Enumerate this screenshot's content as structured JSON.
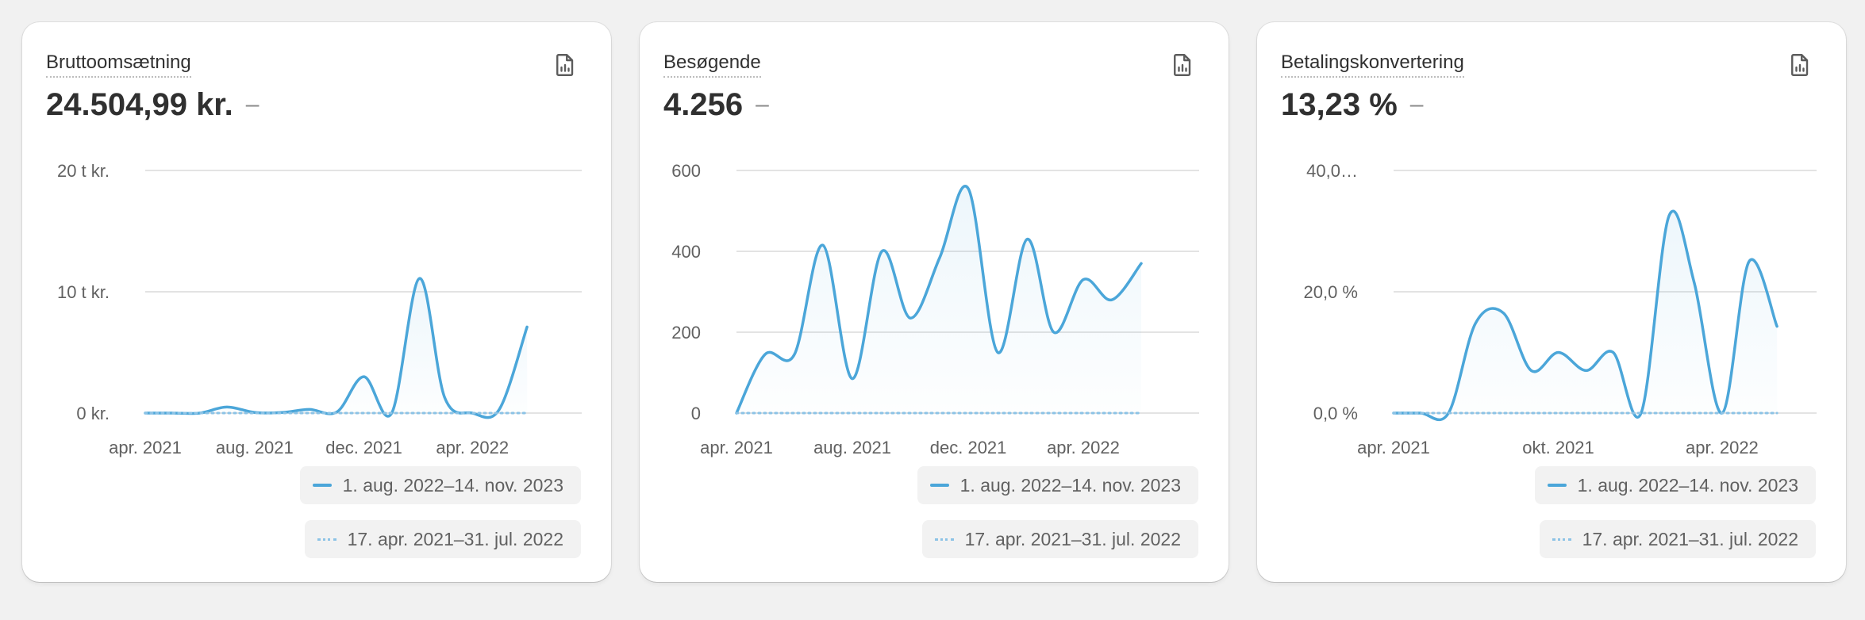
{
  "cards": [
    {
      "title": "Bruttoomsætning",
      "value": "24.504,99 kr.",
      "comparison": "–",
      "icon": "report-icon",
      "legend": {
        "current": "1. aug. 2022–14. nov. 2023",
        "previous": "17. apr. 2021–31. jul. 2022"
      }
    },
    {
      "title": "Besøgende",
      "value": "4.256",
      "comparison": "–",
      "icon": "report-icon",
      "legend": {
        "current": "1. aug. 2022–14. nov. 2023",
        "previous": "17. apr. 2021–31. jul. 2022"
      }
    },
    {
      "title": "Betalingskonvertering",
      "value": "13,23 %",
      "comparison": "–",
      "icon": "report-icon",
      "legend": {
        "current": "1. aug. 2022–14. nov. 2023",
        "previous": "17. apr. 2021–31. jul. 2022"
      }
    }
  ],
  "colors": {
    "current": "#4ba6d9",
    "previous": "#8cc3e6",
    "grid": "#e3e3e3",
    "tick": "#616161"
  },
  "chart_data": [
    {
      "type": "line",
      "title": "Bruttoomsætning",
      "ylim": [
        0,
        20000
      ],
      "yticks": [
        0,
        10000,
        20000
      ],
      "ytick_labels": [
        "0 kr.",
        "10 t kr.",
        "20 t kr."
      ],
      "xlim": [
        "2021-04-01",
        "2022-08-01"
      ],
      "xticks": [
        "2021-04-01",
        "2021-08-01",
        "2021-12-01",
        "2022-04-01"
      ],
      "xtick_labels": [
        "apr. 2021",
        "aug. 2021",
        "dec. 2021",
        "apr. 2022"
      ],
      "grid": true,
      "legend_position": "bottom-right",
      "series": [
        {
          "name": "1. aug. 2022–14. nov. 2023",
          "style": "solid",
          "points": [
            [
              "2021-04-01",
              0
            ],
            [
              "2021-05-01",
              0
            ],
            [
              "2021-06-01",
              0
            ],
            [
              "2021-07-01",
              500
            ],
            [
              "2021-08-01",
              50
            ],
            [
              "2021-09-01",
              50
            ],
            [
              "2021-10-01",
              300
            ],
            [
              "2021-11-01",
              100
            ],
            [
              "2021-12-01",
              3000
            ],
            [
              "2022-01-01",
              0
            ],
            [
              "2022-02-01",
              11100
            ],
            [
              "2022-03-01",
              1300
            ],
            [
              "2022-04-01",
              0
            ],
            [
              "2022-05-01",
              300
            ],
            [
              "2022-06-01",
              7100
            ]
          ]
        },
        {
          "name": "17. apr. 2021–31. jul. 2022",
          "style": "dotted",
          "points": [
            [
              "2021-04-01",
              0
            ],
            [
              "2022-06-01",
              0
            ]
          ]
        }
      ]
    },
    {
      "type": "line",
      "title": "Besøgende",
      "ylim": [
        0,
        600
      ],
      "yticks": [
        0,
        200,
        400,
        600
      ],
      "ytick_labels": [
        "0",
        "200",
        "400",
        "600"
      ],
      "xlim": [
        "2021-04-01",
        "2022-08-01"
      ],
      "xticks": [
        "2021-04-01",
        "2021-08-01",
        "2021-12-01",
        "2022-04-01"
      ],
      "xtick_labels": [
        "apr. 2021",
        "aug. 2021",
        "dec. 2021",
        "apr. 2022"
      ],
      "grid": true,
      "legend_position": "bottom-right",
      "series": [
        {
          "name": "1. aug. 2022–14. nov. 2023",
          "style": "solid",
          "points": [
            [
              "2021-04-01",
              0
            ],
            [
              "2021-05-01",
              145
            ],
            [
              "2021-06-01",
              145
            ],
            [
              "2021-07-01",
              415
            ],
            [
              "2021-08-01",
              85
            ],
            [
              "2021-09-01",
              400
            ],
            [
              "2021-10-01",
              235
            ],
            [
              "2021-11-01",
              385
            ],
            [
              "2021-12-01",
              555
            ],
            [
              "2022-01-01",
              150
            ],
            [
              "2022-02-01",
              430
            ],
            [
              "2022-03-01",
              200
            ],
            [
              "2022-04-01",
              330
            ],
            [
              "2022-05-01",
              280
            ],
            [
              "2022-06-01",
              370
            ]
          ]
        },
        {
          "name": "17. apr. 2021–31. jul. 2022",
          "style": "dotted",
          "points": [
            [
              "2021-04-01",
              0
            ],
            [
              "2022-06-01",
              0
            ]
          ]
        }
      ]
    },
    {
      "type": "line",
      "title": "Betalingskonvertering",
      "ylim": [
        0,
        40
      ],
      "yticks": [
        0,
        20,
        40
      ],
      "ytick_labels": [
        "0,0 %",
        "20,0 %",
        "40,0…"
      ],
      "xlim": [
        "2021-04-01",
        "2022-07-15"
      ],
      "xticks": [
        "2021-04-01",
        "2021-10-01",
        "2022-04-01"
      ],
      "xtick_labels": [
        "apr. 2021",
        "okt. 2021",
        "apr. 2022"
      ],
      "grid": true,
      "legend_position": "bottom-right",
      "series": [
        {
          "name": "1. aug. 2022–14. nov. 2023",
          "style": "solid",
          "points": [
            [
              "2021-04-01",
              0
            ],
            [
              "2021-05-01",
              0
            ],
            [
              "2021-06-01",
              0
            ],
            [
              "2021-07-01",
              14.8
            ],
            [
              "2021-08-01",
              16.5
            ],
            [
              "2021-09-01",
              7
            ],
            [
              "2021-10-01",
              10
            ],
            [
              "2021-11-01",
              7
            ],
            [
              "2021-12-01",
              10
            ],
            [
              "2022-01-01",
              0
            ],
            [
              "2022-02-01",
              32.5
            ],
            [
              "2022-03-01",
              21.5
            ],
            [
              "2022-04-01",
              0
            ],
            [
              "2022-05-01",
              25
            ],
            [
              "2022-06-01",
              14.3
            ]
          ]
        },
        {
          "name": "17. apr. 2021–31. jul. 2022",
          "style": "dotted",
          "points": [
            [
              "2021-04-01",
              0
            ],
            [
              "2022-06-01",
              0
            ]
          ]
        }
      ]
    }
  ]
}
